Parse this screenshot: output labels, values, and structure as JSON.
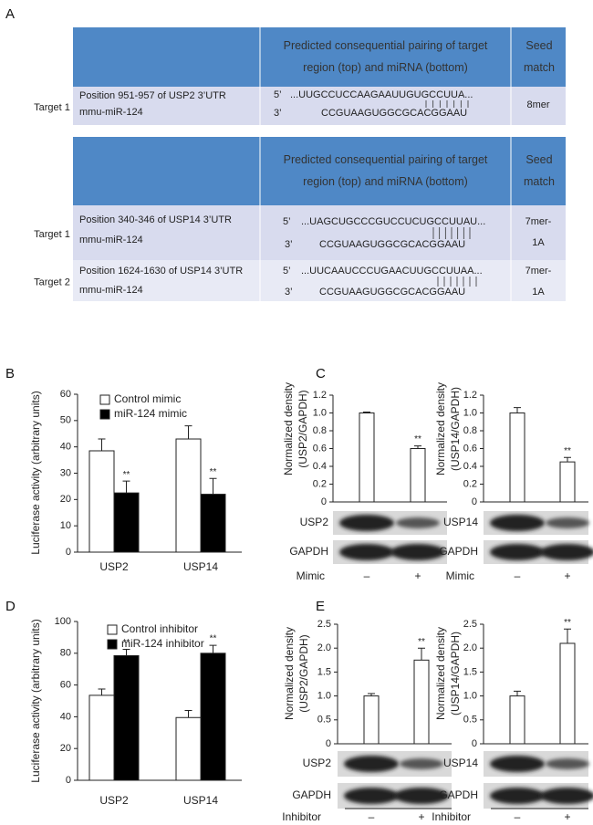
{
  "table_a": {
    "panel": "A",
    "header": [
      [
        "Predicted consequential pairing of target",
        "region (top) and miRNA (bottom)"
      ],
      [
        "Seed",
        "match"
      ]
    ],
    "rows": [
      {
        "target": "Target 1",
        "region": "Position 951-957 of USP2 3’UTR",
        "mirna": "mmu-miR-124",
        "prime5": "5’",
        "target_seq": "...UUGCCUCCAAGAAUUGUGCCUUA...",
        "prime3": "3’",
        "mirna_seq": "CCGUAAGUGGCGCACGGAAU",
        "seed": [
          "8mer"
        ]
      }
    ]
  },
  "table_b": {
    "header": [
      [
        "Predicted consequential pairing of target",
        "region (top) and miRNA (bottom)"
      ],
      [
        "Seed",
        "match"
      ]
    ],
    "rows": [
      {
        "target": "Target 1",
        "region": "Position 340-346 of USP14 3’UTR",
        "mirna": "mmu-miR-124",
        "prime5": "5’",
        "target_seq": "...UAGCUGCCCGUCCUCUGCCUUAU...",
        "prime3": "3’",
        "mirna_seq": "CCGUAAGUGGCGCACGGAAU",
        "seed": [
          "7mer-",
          "1A"
        ]
      },
      {
        "target": "Target 2",
        "region": "Position 1624-1630 of USP14 3’UTR",
        "mirna": "mmu-miR-124",
        "prime5": "5’",
        "target_seq": "...UUCAAUCCCUGAACUUGCCUUAA...",
        "prime3": "3’",
        "mirna_seq": "CCGUAAGUGGCGCACGGAAU",
        "seed": [
          "7mer-",
          "1A"
        ]
      }
    ]
  },
  "chart_data": [
    {
      "type": "bar",
      "panel": "B",
      "ylabel": "Luciferase activity (arbitrary units)",
      "categories": [
        "USP2",
        "USP14"
      ],
      "series": [
        {
          "name": "Control mimic",
          "color": "#ffffff",
          "values": [
            38.5,
            43
          ],
          "errors": [
            4.5,
            5
          ]
        },
        {
          "name": "miR-124 mimic",
          "color": "#000000",
          "values": [
            22.5,
            22
          ],
          "errors": [
            4.5,
            6
          ],
          "significance": [
            "**",
            "**"
          ]
        }
      ],
      "ylim": [
        0,
        60
      ],
      "yticks": [
        0,
        10,
        20,
        30,
        40,
        50,
        60
      ],
      "legend": "top-left"
    },
    {
      "type": "bar",
      "panel": "C",
      "ylabel": [
        "Normalized density",
        "(USP2/GAPDH)"
      ],
      "xlabel": "Mimic",
      "categories": [
        "–",
        "+"
      ],
      "blots": [
        "USP2",
        "GAPDH"
      ],
      "series": [
        {
          "color": "#ffffff",
          "values": [
            1,
            0.6
          ],
          "errors": [
            0.01,
            0.03
          ],
          "significance": [
            null,
            "**"
          ]
        }
      ],
      "ylim": [
        0,
        1.2
      ],
      "yticks": [
        0,
        0.2,
        0.4,
        0.6,
        0.8,
        {
          "value": 1,
          "label": "1.0"
        },
        1.2
      ]
    },
    {
      "type": "bar",
      "ylabel": [
        "Normalized density",
        "(USP14/GAPDH)"
      ],
      "xlabel": "Mimic",
      "categories": [
        "–",
        "+"
      ],
      "blots": [
        "USP14",
        "GAPDH"
      ],
      "series": [
        {
          "color": "#ffffff",
          "values": [
            1,
            0.45
          ],
          "errors": [
            0.06,
            0.05
          ],
          "significance": [
            null,
            "**"
          ]
        }
      ],
      "ylim": [
        0,
        1.2
      ],
      "yticks": [
        0,
        0.2,
        0.4,
        0.6,
        0.8,
        {
          "value": 1,
          "label": "1.0"
        },
        1.2
      ]
    },
    {
      "type": "bar",
      "panel": "D",
      "ylabel": "Luciferase activity (arbitrary units)",
      "categories": [
        "USP2",
        "USP14"
      ],
      "series": [
        {
          "name": "Control inhibitor",
          "color": "#ffffff",
          "values": [
            53.5,
            39.5
          ],
          "errors": [
            4,
            4.5
          ]
        },
        {
          "name": "miR-124 inhibitor",
          "color": "#000000",
          "values": [
            78.5,
            80
          ],
          "errors": [
            4,
            5
          ],
          "significance": [
            "**",
            "**"
          ]
        }
      ],
      "ylim": [
        0,
        100
      ],
      "yticks": [
        0,
        20,
        40,
        60,
        80,
        100
      ],
      "legend": "top-left"
    },
    {
      "type": "bar",
      "panel": "E",
      "ylabel": [
        "Normalized density",
        "(USP2/GAPDH)"
      ],
      "xlabel": "Inhibitor",
      "categories": [
        "–",
        "+"
      ],
      "blots": [
        "USP2",
        "GAPDH"
      ],
      "series": [
        {
          "color": "#ffffff",
          "values": [
            1,
            1.75
          ],
          "errors": [
            0.05,
            0.25
          ],
          "significance": [
            null,
            "**"
          ]
        }
      ],
      "ylim": [
        0,
        2.5
      ],
      "yticks": [
        0,
        0.5,
        {
          "value": 1,
          "label": "1.0"
        },
        1.5,
        {
          "value": 2,
          "label": "2.0"
        },
        2.5
      ]
    },
    {
      "type": "bar",
      "ylabel": [
        "Normalized density",
        "(USP14/GAPDH)"
      ],
      "xlabel": "Inhibitor",
      "categories": [
        "–",
        "+"
      ],
      "blots": [
        "USP14",
        "GAPDH"
      ],
      "series": [
        {
          "color": "#ffffff",
          "values": [
            1,
            2.1
          ],
          "errors": [
            0.1,
            0.3
          ],
          "significance": [
            null,
            "**"
          ]
        }
      ],
      "ylim": [
        0,
        2.5
      ],
      "yticks": [
        0,
        0.5,
        {
          "value": 1,
          "label": "1.0"
        },
        1.5,
        {
          "value": 2,
          "label": "2.0"
        },
        2.5
      ]
    }
  ]
}
